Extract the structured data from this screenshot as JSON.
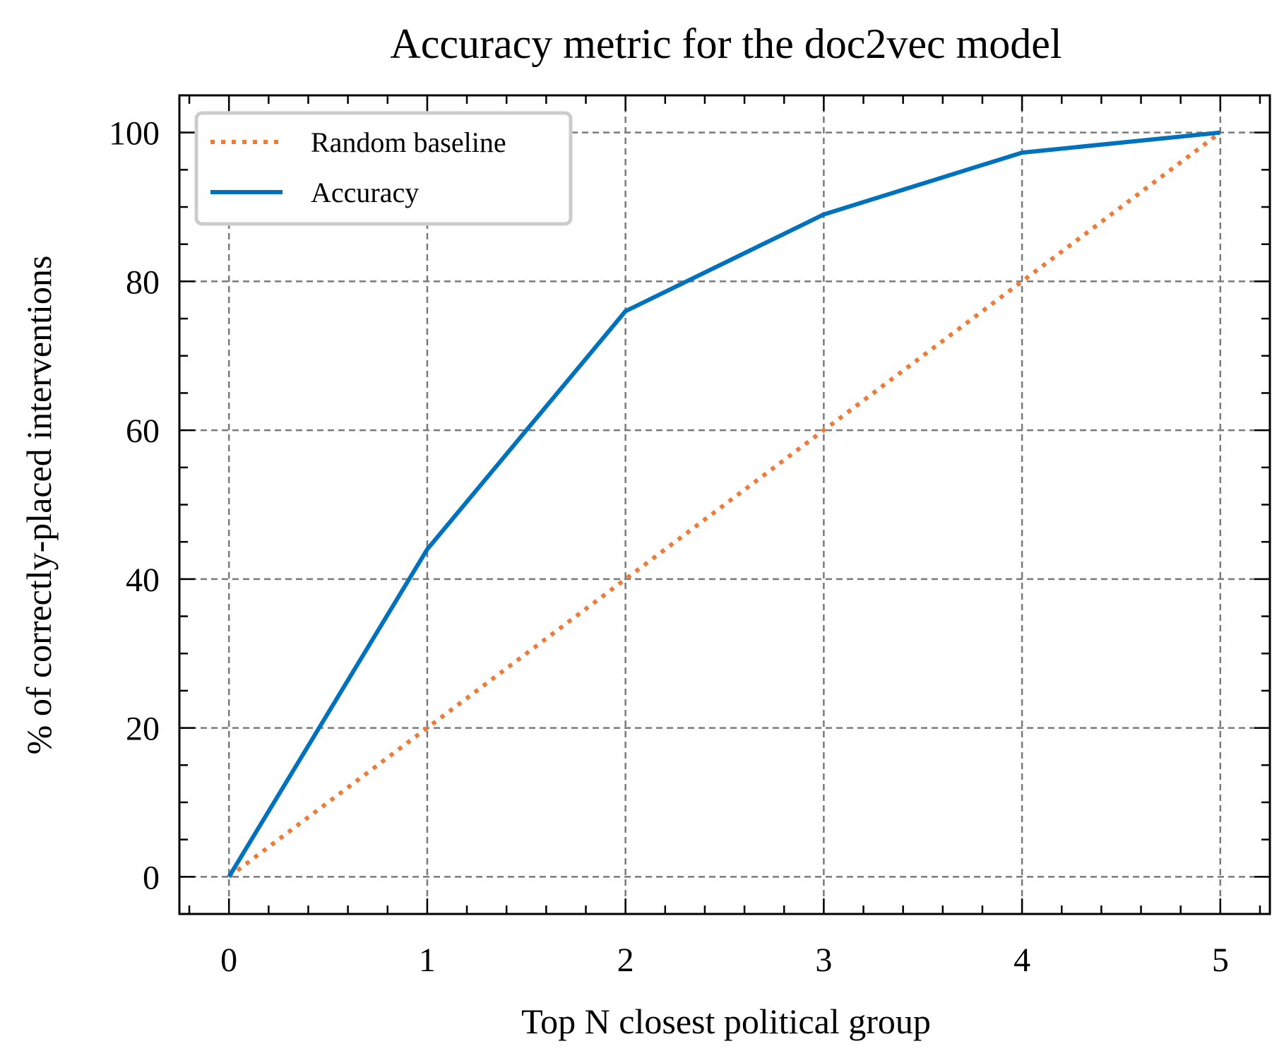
{
  "chart_data": {
    "type": "line",
    "title": "Accuracy metric for the doc2vec model",
    "xlabel": "Top N closest political group",
    "ylabel": "% of correctly-placed interventions",
    "x": [
      0,
      1,
      2,
      3,
      4,
      5
    ],
    "xlim": [
      -0.25,
      5.25
    ],
    "ylim": [
      -5,
      105
    ],
    "xticks": [
      0,
      1,
      2,
      3,
      4,
      5
    ],
    "yticks": [
      0,
      20,
      40,
      60,
      80,
      100
    ],
    "grid": true,
    "legend_position": "upper-left",
    "series": [
      {
        "name": "Random baseline",
        "values": [
          0,
          20,
          40,
          60,
          80,
          100
        ],
        "color": "#ED7B3A",
        "style": "dotted"
      },
      {
        "name": "Accuracy",
        "values": [
          0,
          44,
          76,
          89,
          97.3,
          100
        ],
        "color": "#0072BD",
        "style": "solid"
      }
    ]
  }
}
